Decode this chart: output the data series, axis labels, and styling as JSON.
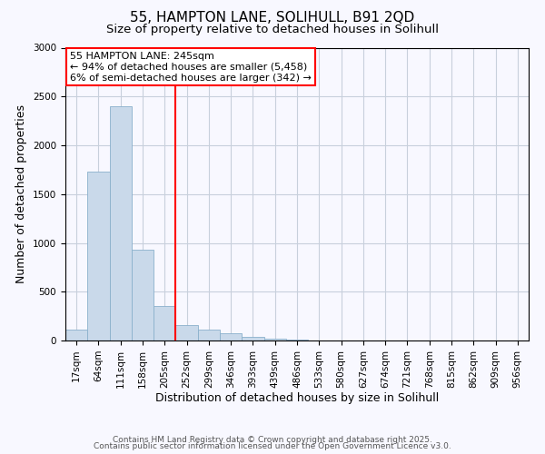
{
  "title": "55, HAMPTON LANE, SOLIHULL, B91 2QD",
  "subtitle": "Size of property relative to detached houses in Solihull",
  "xlabel": "Distribution of detached houses by size in Solihull",
  "ylabel": "Number of detached properties",
  "categories": [
    "17sqm",
    "64sqm",
    "111sqm",
    "158sqm",
    "205sqm",
    "252sqm",
    "299sqm",
    "346sqm",
    "393sqm",
    "439sqm",
    "486sqm",
    "533sqm",
    "580sqm",
    "627sqm",
    "674sqm",
    "721sqm",
    "768sqm",
    "815sqm",
    "862sqm",
    "909sqm",
    "956sqm"
  ],
  "values": [
    115,
    1730,
    2400,
    930,
    350,
    155,
    110,
    75,
    40,
    15,
    5,
    2,
    0,
    0,
    0,
    0,
    0,
    0,
    0,
    0,
    0
  ],
  "bar_color": "#c9d9ea",
  "bar_edge_color": "#8ab0cc",
  "vline_x_index": 5,
  "vline_color": "red",
  "annotation_title": "55 HAMPTON LANE: 245sqm",
  "annotation_line1": "← 94% of detached houses are smaller (5,458)",
  "annotation_line2": "6% of semi-detached houses are larger (342) →",
  "annotation_box_color": "white",
  "annotation_box_edge_color": "red",
  "ylim": [
    0,
    3000
  ],
  "yticks": [
    0,
    500,
    1000,
    1500,
    2000,
    2500,
    3000
  ],
  "footnote1": "Contains HM Land Registry data © Crown copyright and database right 2025.",
  "footnote2": "Contains public sector information licensed under the Open Government Licence v3.0.",
  "bg_color": "#f8f8ff",
  "grid_color": "#c8d0dc",
  "title_fontsize": 11,
  "subtitle_fontsize": 9.5,
  "label_fontsize": 9,
  "tick_fontsize": 7.5,
  "annotation_fontsize": 8,
  "footnote_fontsize": 6.5
}
